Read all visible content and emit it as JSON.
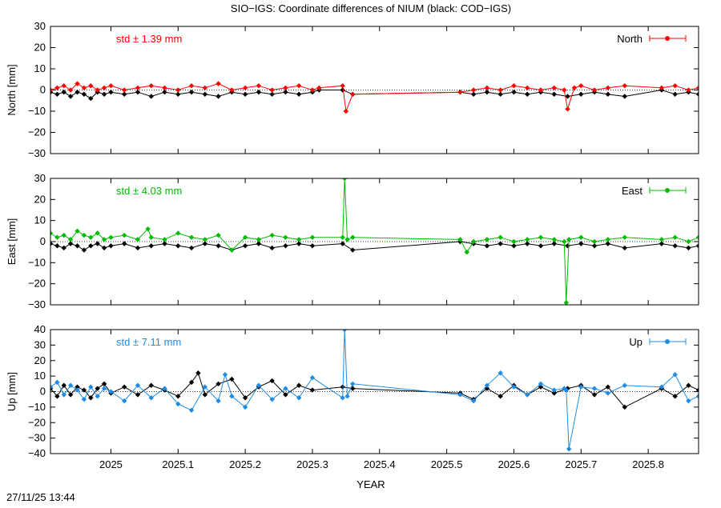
{
  "title": "SIO−IGS: Coordinate differences of NIUM (black: COD−IGS)",
  "xlabel": "YEAR",
  "timestamp": "27/11/25 13:44",
  "colors": {
    "north": "#ff0000",
    "east": "#00bb00",
    "up": "#1e8ce6",
    "reference": "#000000"
  },
  "chart_data": [
    {
      "type": "line",
      "panel": "north",
      "ylabel": "North [mm]",
      "legend": "North",
      "legend_position": "top-right",
      "std_label": "std ± 1.39 mm",
      "xlim": [
        2024.91,
        2025.875
      ],
      "ylim": [
        -30,
        30
      ],
      "xticks": [
        "2025",
        "2025.1",
        "2025.2",
        "2025.3",
        "2025.4",
        "2025.5",
        "2025.6",
        "2025.7",
        "2025.8"
      ],
      "yticks": [
        "30",
        "20",
        "10",
        "0",
        "−10",
        "−20",
        "−30"
      ],
      "series": [
        {
          "color": "#000000",
          "x": [
            2024.91,
            2024.92,
            2024.93,
            2024.94,
            2024.95,
            2024.96,
            2024.97,
            2024.98,
            2024.99,
            2025.0,
            2025.02,
            2025.04,
            2025.06,
            2025.08,
            2025.1,
            2025.12,
            2025.14,
            2025.16,
            2025.18,
            2025.2,
            2025.22,
            2025.24,
            2025.26,
            2025.28,
            2025.3,
            2025.31,
            2025.345,
            2025.36,
            2025.52,
            2025.54,
            2025.56,
            2025.58,
            2025.6,
            2025.62,
            2025.64,
            2025.66,
            2025.68,
            2025.7,
            2025.72,
            2025.74,
            2025.765,
            2025.82,
            2025.84,
            2025.86,
            2025.875
          ],
          "y": [
            -1,
            -2,
            -1,
            -3,
            -1,
            -2,
            -4,
            -1,
            -2,
            -1,
            -2,
            -1,
            -3,
            -1,
            -2,
            -1,
            -2,
            -3,
            -1,
            -2,
            -1,
            -2,
            -1,
            -2,
            -1,
            0,
            0,
            -2,
            -1,
            -2,
            -1,
            -2,
            -1,
            -2,
            -1,
            -2,
            -3,
            -2,
            -1,
            -2,
            -3,
            0,
            -2,
            -1,
            -2
          ]
        },
        {
          "color": "#ff0000",
          "x": [
            2024.91,
            2024.92,
            2024.93,
            2024.94,
            2024.95,
            2024.96,
            2024.97,
            2024.98,
            2024.99,
            2025.0,
            2025.02,
            2025.04,
            2025.06,
            2025.08,
            2025.1,
            2025.12,
            2025.14,
            2025.16,
            2025.18,
            2025.2,
            2025.22,
            2025.24,
            2025.26,
            2025.28,
            2025.3,
            2025.31,
            2025.345,
            2025.35,
            2025.36,
            2025.52,
            2025.54,
            2025.56,
            2025.58,
            2025.6,
            2025.62,
            2025.64,
            2025.66,
            2025.675,
            2025.68,
            2025.69,
            2025.7,
            2025.72,
            2025.74,
            2025.765,
            2025.82,
            2025.84,
            2025.86,
            2025.875
          ],
          "y": [
            0,
            1,
            2,
            0,
            3,
            1,
            2,
            0,
            1,
            2,
            0,
            1,
            2,
            1,
            0,
            2,
            1,
            3,
            0,
            1,
            2,
            0,
            1,
            2,
            0,
            1,
            2,
            -10,
            -2,
            -1,
            0,
            1,
            0,
            2,
            1,
            0,
            1,
            0,
            -9,
            1,
            2,
            0,
            1,
            2,
            1,
            2,
            0,
            1
          ]
        }
      ]
    },
    {
      "type": "line",
      "panel": "east",
      "ylabel": "East [mm]",
      "legend": "East",
      "legend_position": "top-right",
      "std_label": "std ± 4.03 mm",
      "xlim": [
        2024.91,
        2025.875
      ],
      "ylim": [
        -30,
        30
      ],
      "xticks": [
        "2025",
        "2025.1",
        "2025.2",
        "2025.3",
        "2025.4",
        "2025.5",
        "2025.6",
        "2025.7",
        "2025.8"
      ],
      "yticks": [
        "30",
        "20",
        "10",
        "0",
        "−10",
        "−20",
        "−30"
      ],
      "series": [
        {
          "color": "#000000",
          "x": [
            2024.91,
            2024.92,
            2024.93,
            2024.94,
            2024.95,
            2024.96,
            2024.97,
            2024.98,
            2024.99,
            2025.0,
            2025.02,
            2025.04,
            2025.06,
            2025.08,
            2025.1,
            2025.12,
            2025.14,
            2025.16,
            2025.18,
            2025.2,
            2025.22,
            2025.24,
            2025.26,
            2025.28,
            2025.3,
            2025.345,
            2025.36,
            2025.52,
            2025.54,
            2025.56,
            2025.58,
            2025.6,
            2025.62,
            2025.64,
            2025.66,
            2025.68,
            2025.7,
            2025.72,
            2025.74,
            2025.765,
            2025.82,
            2025.84,
            2025.86,
            2025.875
          ],
          "y": [
            -1,
            -2,
            -3,
            -1,
            -2,
            -4,
            -2,
            -1,
            -3,
            -2,
            -1,
            -3,
            -2,
            -1,
            -2,
            -3,
            -1,
            -2,
            -4,
            -2,
            -1,
            -3,
            -2,
            -1,
            -2,
            -1,
            -4,
            0,
            -1,
            -2,
            -1,
            -2,
            -1,
            -2,
            -1,
            -2,
            -1,
            -2,
            -1,
            -3,
            -1,
            -2,
            -3,
            -2
          ]
        },
        {
          "color": "#00bb00",
          "x": [
            2024.91,
            2024.92,
            2024.93,
            2024.94,
            2024.95,
            2024.96,
            2024.97,
            2024.98,
            2024.99,
            2025.0,
            2025.02,
            2025.04,
            2025.055,
            2025.06,
            2025.08,
            2025.1,
            2025.12,
            2025.14,
            2025.16,
            2025.18,
            2025.2,
            2025.22,
            2025.24,
            2025.26,
            2025.28,
            2025.3,
            2025.345,
            2025.348,
            2025.352,
            2025.36,
            2025.52,
            2025.53,
            2025.54,
            2025.56,
            2025.58,
            2025.6,
            2025.62,
            2025.64,
            2025.66,
            2025.675,
            2025.678,
            2025.682,
            2025.7,
            2025.72,
            2025.74,
            2025.765,
            2025.82,
            2025.84,
            2025.86,
            2025.875
          ],
          "y": [
            4,
            2,
            3,
            1,
            5,
            3,
            2,
            4,
            1,
            2,
            3,
            1,
            6,
            2,
            1,
            4,
            2,
            1,
            3,
            -4,
            2,
            1,
            3,
            2,
            1,
            2,
            2,
            30,
            1,
            2,
            1,
            -5,
            0,
            1,
            2,
            0,
            1,
            2,
            1,
            0,
            -29,
            1,
            2,
            0,
            1,
            2,
            1,
            2,
            0,
            2
          ]
        }
      ]
    },
    {
      "type": "line",
      "panel": "up",
      "ylabel": "Up [mm]",
      "legend": "Up",
      "legend_position": "top-right",
      "std_label": "std ± 7.11 mm",
      "xlim": [
        2024.91,
        2025.875
      ],
      "ylim": [
        -40,
        40
      ],
      "xticks": [
        "2025",
        "2025.1",
        "2025.2",
        "2025.3",
        "2025.4",
        "2025.5",
        "2025.6",
        "2025.7",
        "2025.8"
      ],
      "yticks": [
        "40",
        "30",
        "20",
        "10",
        "0",
        "−10",
        "−20",
        "−30",
        "−40"
      ],
      "series": [
        {
          "color": "#000000",
          "x": [
            2024.91,
            2024.92,
            2024.93,
            2024.94,
            2024.95,
            2024.96,
            2024.97,
            2024.98,
            2024.99,
            2025.0,
            2025.02,
            2025.04,
            2025.06,
            2025.08,
            2025.1,
            2025.12,
            2025.13,
            2025.14,
            2025.16,
            2025.18,
            2025.2,
            2025.22,
            2025.24,
            2025.26,
            2025.28,
            2025.3,
            2025.345,
            2025.36,
            2025.52,
            2025.54,
            2025.56,
            2025.58,
            2025.6,
            2025.62,
            2025.64,
            2025.66,
            2025.68,
            2025.7,
            2025.72,
            2025.74,
            2025.765,
            2025.82,
            2025.84,
            2025.86,
            2025.875
          ],
          "y": [
            2,
            -3,
            4,
            -2,
            3,
            1,
            -4,
            2,
            5,
            -1,
            3,
            -2,
            4,
            1,
            -3,
            6,
            12,
            -2,
            5,
            8,
            -4,
            3,
            7,
            -2,
            4,
            1,
            3,
            2,
            -1,
            -5,
            2,
            -3,
            4,
            -2,
            3,
            -1,
            2,
            4,
            -2,
            3,
            -10,
            2,
            -3,
            4,
            1
          ]
        },
        {
          "color": "#1e8ce6",
          "x": [
            2024.91,
            2024.92,
            2024.93,
            2024.94,
            2024.95,
            2024.96,
            2024.97,
            2024.98,
            2024.99,
            2025.0,
            2025.02,
            2025.04,
            2025.06,
            2025.08,
            2025.1,
            2025.12,
            2025.14,
            2025.16,
            2025.17,
            2025.18,
            2025.2,
            2025.22,
            2025.24,
            2025.26,
            2025.28,
            2025.3,
            2025.345,
            2025.348,
            2025.352,
            2025.36,
            2025.52,
            2025.54,
            2025.56,
            2025.58,
            2025.6,
            2025.62,
            2025.64,
            2025.66,
            2025.675,
            2025.678,
            2025.682,
            2025.7,
            2025.72,
            2025.74,
            2025.765,
            2025.82,
            2025.84,
            2025.86,
            2025.875
          ],
          "y": [
            3,
            6,
            -2,
            4,
            1,
            -5,
            3,
            -3,
            2,
            0,
            -6,
            4,
            -4,
            2,
            -8,
            -12,
            3,
            -6,
            11,
            -3,
            -10,
            4,
            -5,
            2,
            -4,
            9,
            -4,
            40,
            -3,
            5,
            -2,
            -6,
            4,
            12,
            3,
            -2,
            5,
            1,
            2,
            1,
            -37,
            3,
            2,
            -1,
            4,
            3,
            11,
            -6,
            -3
          ]
        }
      ]
    }
  ]
}
